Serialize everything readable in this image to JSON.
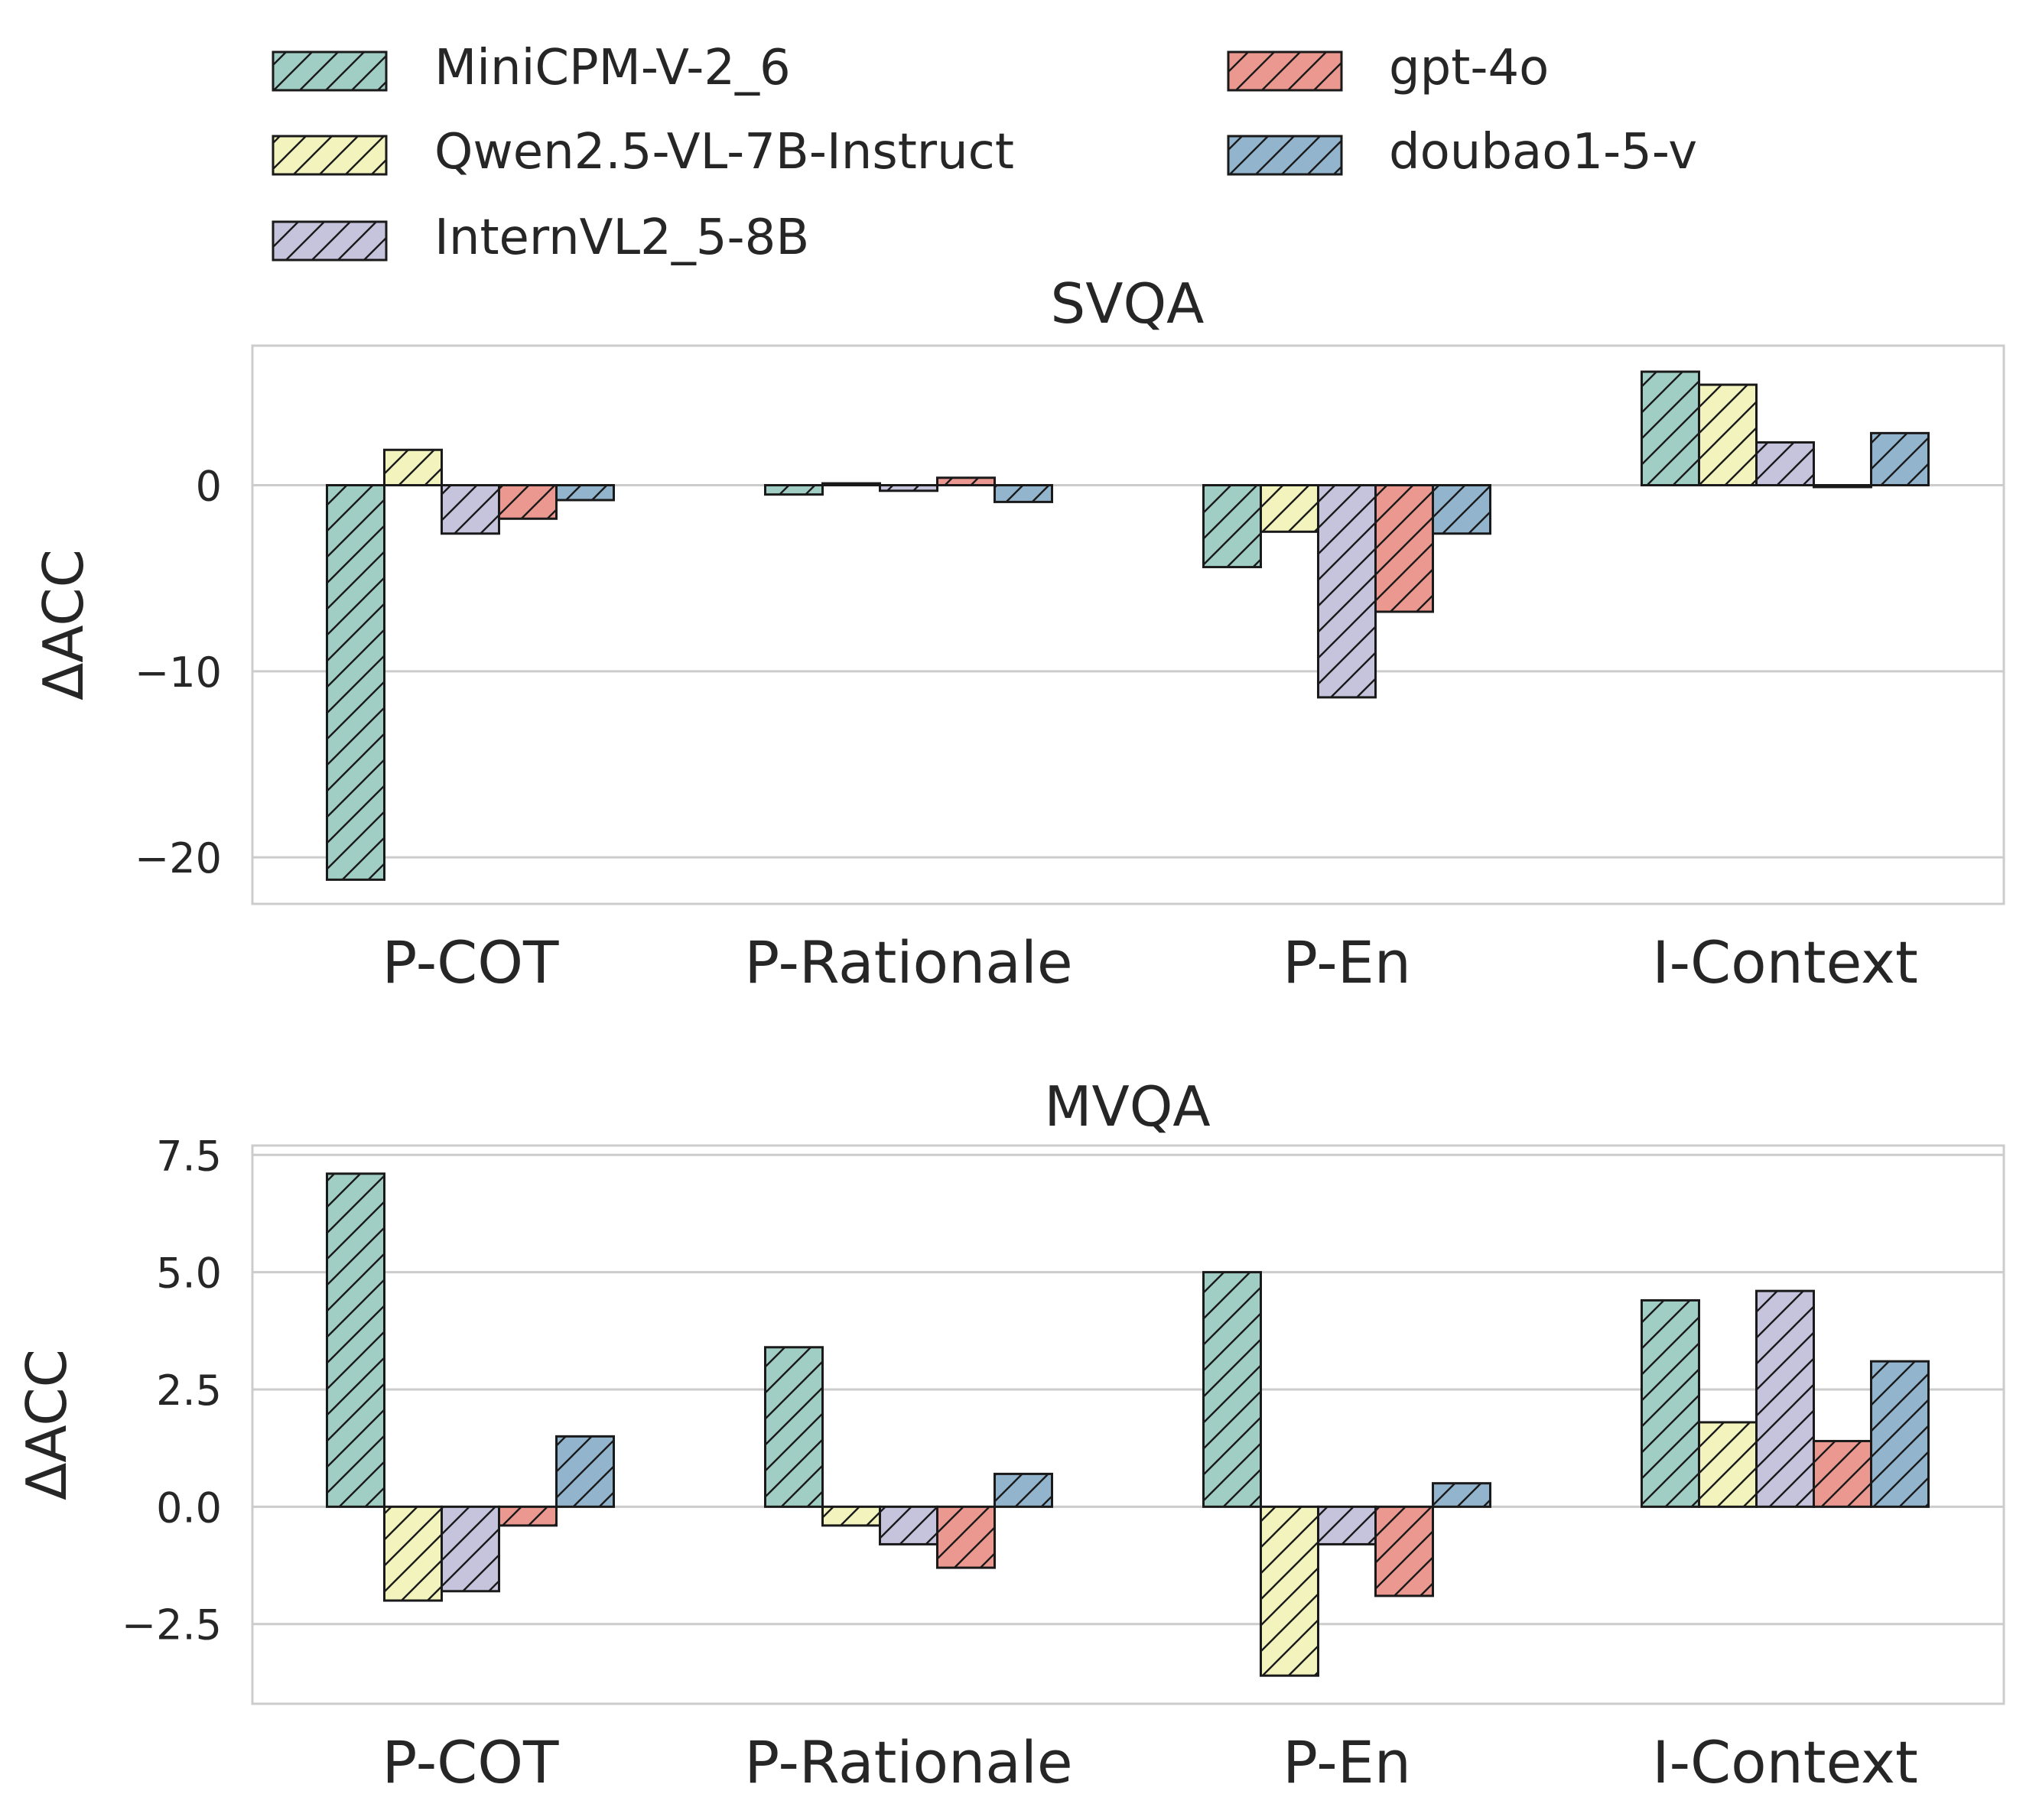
{
  "colors": {
    "MiniCPM-V-2_6": "#a1cec4",
    "Qwen2.5-VL-7B-Instruct": "#f3f4bd",
    "InternVL2_5-8B": "#c6c3dc",
    "gpt-4o": "#eb9890",
    "doubao1-5-v": "#92b4cd",
    "grid": "#cccccc",
    "frame": "#cccccc",
    "edge": "#1a1a1a"
  },
  "legend": {
    "placement": "top, above plots, 2 columns",
    "entries": [
      "MiniCPM-V-2_6",
      "Qwen2.5-VL-7B-Instruct",
      "InternVL2_5-8B",
      "gpt-4o",
      "doubao1-5-v"
    ]
  },
  "chart_data": [
    {
      "type": "bar",
      "title": "SVQA",
      "xlabel": "",
      "ylabel": "ΔACC",
      "categories": [
        "P-COT",
        "P-Rationale",
        "P-En",
        "I-Context"
      ],
      "ylim": [
        -22.5,
        7.5
      ],
      "yticks": [
        0,
        -10,
        -20
      ],
      "ytick_labels": [
        "0",
        "−10",
        "−20"
      ],
      "grid": true,
      "series": [
        {
          "name": "MiniCPM-V-2_6",
          "values": [
            -21.2,
            -0.5,
            -4.4,
            6.1
          ]
        },
        {
          "name": "Qwen2.5-VL-7B-Instruct",
          "values": [
            1.9,
            0.1,
            -2.5,
            5.4
          ]
        },
        {
          "name": "InternVL2_5-8B",
          "values": [
            -2.6,
            -0.3,
            -11.4,
            2.3
          ]
        },
        {
          "name": "gpt-4o",
          "values": [
            -1.8,
            0.4,
            -6.8,
            -0.1
          ]
        },
        {
          "name": "doubao1-5-v",
          "values": [
            -0.8,
            -0.9,
            -2.6,
            2.8
          ]
        }
      ]
    },
    {
      "type": "bar",
      "title": "MVQA",
      "xlabel": "",
      "ylabel": "ΔACC",
      "categories": [
        "P-COT",
        "P-Rationale",
        "P-En",
        "I-Context"
      ],
      "ylim": [
        -4.2,
        7.7
      ],
      "yticks": [
        7.5,
        5.0,
        2.5,
        0.0,
        -2.5
      ],
      "ytick_labels": [
        "7.5",
        "5.0",
        "2.5",
        "0.0",
        "−2.5"
      ],
      "grid": true,
      "series": [
        {
          "name": "MiniCPM-V-2_6",
          "values": [
            7.1,
            3.4,
            5.0,
            4.4
          ]
        },
        {
          "name": "Qwen2.5-VL-7B-Instruct",
          "values": [
            -2.0,
            -0.4,
            -3.6,
            1.8
          ]
        },
        {
          "name": "InternVL2_5-8B",
          "values": [
            -1.8,
            -0.8,
            -0.8,
            4.6
          ]
        },
        {
          "name": "gpt-4o",
          "values": [
            -0.4,
            -1.3,
            -1.9,
            1.4
          ]
        },
        {
          "name": "doubao1-5-v",
          "values": [
            1.5,
            0.7,
            0.5,
            3.1
          ]
        }
      ]
    }
  ]
}
